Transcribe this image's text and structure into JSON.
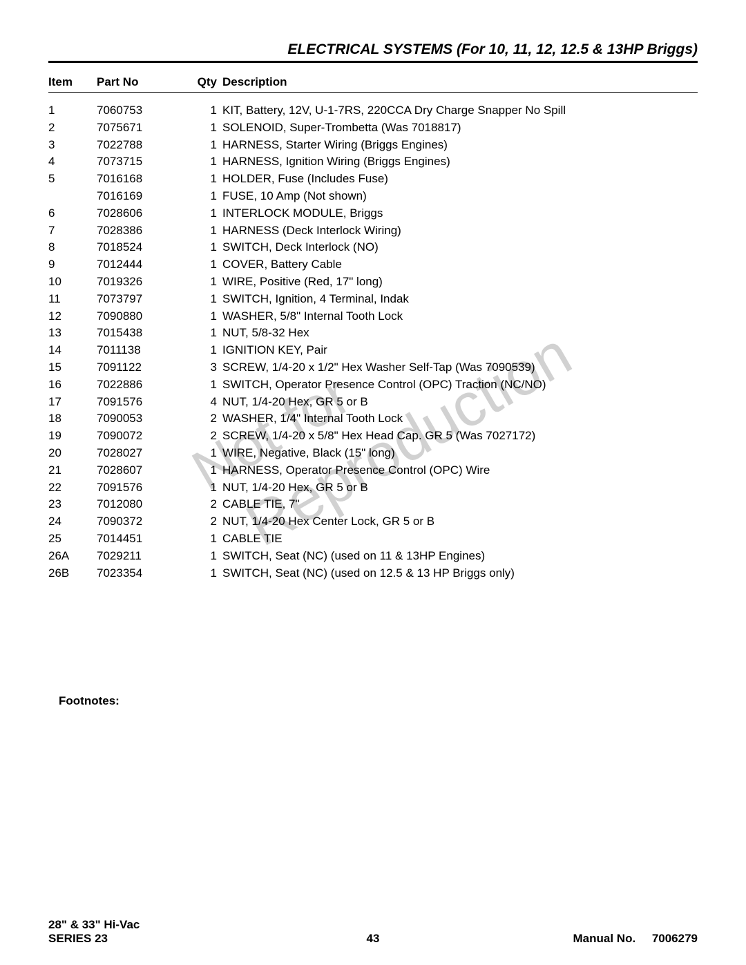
{
  "title": "ELECTRICAL SYSTEMS (For 10, 11, 12, 12.5 & 13HP Briggs)",
  "columns": {
    "item": "Item",
    "partno": "Part No",
    "qty": "Qty",
    "desc": "Description"
  },
  "rows": [
    {
      "item": "1",
      "partno": "7060753",
      "qty": "1",
      "desc": "KIT, Battery, 12V, U-1-7RS, 220CCA Dry Charge Snapper No Spill"
    },
    {
      "item": "2",
      "partno": "7075671",
      "qty": "1",
      "desc": "SOLENOID, Super-Trombetta (Was 7018817)"
    },
    {
      "item": "3",
      "partno": "7022788",
      "qty": "1",
      "desc": "HARNESS, Starter Wiring (Briggs Engines)"
    },
    {
      "item": "4",
      "partno": "7073715",
      "qty": "1",
      "desc": "HARNESS, Ignition Wiring (Briggs Engines)"
    },
    {
      "item": "5",
      "partno": "7016168",
      "qty": "1",
      "desc": "HOLDER, Fuse (Includes Fuse)"
    },
    {
      "item": "",
      "partno": "7016169",
      "qty": "1",
      "desc": "FUSE, 10 Amp (Not shown)"
    },
    {
      "item": "6",
      "partno": "7028606",
      "qty": "1",
      "desc": "INTERLOCK MODULE, Briggs"
    },
    {
      "item": "7",
      "partno": "7028386",
      "qty": "1",
      "desc": "HARNESS (Deck Interlock Wiring)"
    },
    {
      "item": "8",
      "partno": "7018524",
      "qty": "1",
      "desc": "SWITCH, Deck Interlock (NO)"
    },
    {
      "item": "9",
      "partno": "7012444",
      "qty": "1",
      "desc": "COVER, Battery Cable"
    },
    {
      "item": "10",
      "partno": "7019326",
      "qty": "1",
      "desc": "WIRE, Positive (Red, 17\" long)"
    },
    {
      "item": "11",
      "partno": "7073797",
      "qty": "1",
      "desc": "SWITCH, Ignition, 4 Terminal, Indak"
    },
    {
      "item": "12",
      "partno": "7090880",
      "qty": "1",
      "desc": "WASHER, 5/8\" Internal Tooth Lock"
    },
    {
      "item": "13",
      "partno": "7015438",
      "qty": "1",
      "desc": "NUT, 5/8-32 Hex"
    },
    {
      "item": "14",
      "partno": "7011138",
      "qty": "1",
      "desc": "IGNITION KEY, Pair"
    },
    {
      "item": "15",
      "partno": "7091122",
      "qty": "3",
      "desc": "SCREW, 1/4-20 x 1/2\" Hex Washer Self-Tap (Was 7090539)"
    },
    {
      "item": "16",
      "partno": "7022886",
      "qty": "1",
      "desc": "SWITCH, Operator Presence Control (OPC) Traction (NC/NO)"
    },
    {
      "item": "17",
      "partno": "7091576",
      "qty": "4",
      "desc": "NUT, 1/4-20 Hex, GR 5 or B"
    },
    {
      "item": "18",
      "partno": "7090053",
      "qty": "2",
      "desc": "WASHER, 1/4\" Internal Tooth Lock"
    },
    {
      "item": "19",
      "partno": "7090072",
      "qty": "2",
      "desc": "SCREW, 1/4-20 x 5/8\" Hex Head Cap. GR 5 (Was 7027172)"
    },
    {
      "item": "20",
      "partno": "7028027",
      "qty": "1",
      "desc": "WIRE, Negative, Black (15\" long)"
    },
    {
      "item": "21",
      "partno": "7028607",
      "qty": "1",
      "desc": "HARNESS, Operator Presence Control (OPC) Wire"
    },
    {
      "item": "22",
      "partno": "7091576",
      "qty": "1",
      "desc": "NUT, 1/4-20 Hex, GR 5 or B"
    },
    {
      "item": "23",
      "partno": "7012080",
      "qty": "2",
      "desc": "CABLE TIE, 7\""
    },
    {
      "item": "24",
      "partno": "7090372",
      "qty": "2",
      "desc": "NUT, 1/4-20 Hex Center Lock, GR 5 or B"
    },
    {
      "item": "25",
      "partno": "7014451",
      "qty": "1",
      "desc": "CABLE TIE"
    },
    {
      "item": "26A",
      "partno": "7029211",
      "qty": "1",
      "desc": "SWITCH, Seat (NC) (used on 11 & 13HP Engines)"
    },
    {
      "item": "26B",
      "partno": "7023354",
      "qty": "1",
      "desc": "SWITCH, Seat (NC) (used on 12.5 & 13 HP Briggs only)"
    }
  ],
  "footnotes_label": "Footnotes:",
  "watermark1": "Not for",
  "watermark2": "Reproduction",
  "footer": {
    "left_line1": "28\" & 33\" Hi-Vac",
    "left_line2": "SERIES 23",
    "page": "43",
    "right_label": "Manual No.",
    "right_value": "7006279"
  }
}
